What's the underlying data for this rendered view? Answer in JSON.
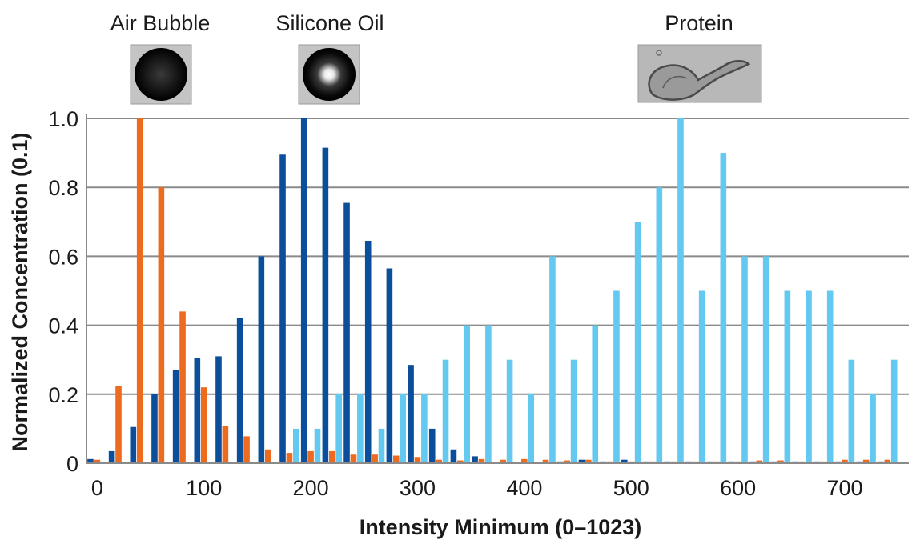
{
  "chart_data": {
    "type": "bar",
    "xlabel": "Intensity Minimum (0–1023)",
    "ylabel": "Normalized Concentration (0.1)",
    "ylim": [
      0,
      1.0
    ],
    "xlim": [
      -10,
      760
    ],
    "grid": true,
    "y_ticks": [
      0,
      0.2,
      0.4,
      0.6,
      0.8,
      1.0
    ],
    "y_tick_labels": [
      "0",
      "0.2",
      "0.4",
      "0.6",
      "0.8",
      "1.0"
    ],
    "x_ticks": [
      0,
      100,
      200,
      300,
      400,
      500,
      600,
      700
    ],
    "x_tick_labels": [
      "0",
      "100",
      "200",
      "300",
      "400",
      "500",
      "600",
      "700"
    ],
    "x": [
      0,
      20,
      40,
      60,
      80,
      100,
      120,
      140,
      160,
      180,
      200,
      220,
      240,
      260,
      280,
      300,
      320,
      340,
      360,
      380,
      400,
      420,
      440,
      460,
      480,
      500,
      520,
      540,
      560,
      580,
      600,
      620,
      640,
      660,
      680,
      700,
      720,
      740
    ],
    "series": [
      {
        "color": "#0b4f9c",
        "values": [
          0.012,
          0.035,
          0.105,
          0.2,
          0.27,
          0.305,
          0.31,
          0.42,
          0.6,
          0.895,
          1.0,
          0.915,
          0.755,
          0.645,
          0.565,
          0.285,
          0.1,
          0.04,
          0.02,
          0.0,
          0.0,
          0.0,
          0.005,
          0.01,
          0.005,
          0.01,
          0.005,
          0.005,
          0.005,
          0.005,
          0.005,
          0.005,
          0.005,
          0.005,
          0.005,
          0.005,
          0.005,
          0.005
        ]
      },
      {
        "color": "#ed6b1f",
        "values": [
          0.01,
          0.225,
          1.0,
          0.8,
          0.44,
          0.22,
          0.108,
          0.078,
          0.04,
          0.03,
          0.035,
          0.035,
          0.025,
          0.025,
          0.022,
          0.018,
          0.01,
          0.008,
          0.012,
          0.01,
          0.012,
          0.01,
          0.008,
          0.01,
          0.005,
          0.005,
          0.005,
          0.005,
          0.005,
          0.005,
          0.005,
          0.008,
          0.008,
          0.005,
          0.005,
          0.01,
          0.01,
          0.01
        ]
      },
      {
        "color": "#63c9f1",
        "values": [
          0.0,
          0.0,
          0.0,
          0.0,
          0.0,
          0.0,
          0.0,
          0.0,
          0.0,
          0.1,
          0.1,
          0.2,
          0.2,
          0.1,
          0.2,
          0.2,
          0.3,
          0.4,
          0.4,
          0.3,
          0.2,
          0.6,
          0.3,
          0.4,
          0.5,
          0.7,
          0.8,
          1.0,
          0.5,
          0.9,
          0.6,
          0.6,
          0.5,
          0.5,
          0.5,
          0.3,
          0.2,
          0.3
        ]
      }
    ],
    "annotations": [
      {
        "label": "Air Bubble",
        "x": 30,
        "image": "air-bubble-particle"
      },
      {
        "label": "Silicone Oil",
        "x": 200,
        "image": "silicone-oil-particle"
      },
      {
        "label": "Protein",
        "x": 560,
        "image": "protein-particle"
      }
    ]
  }
}
